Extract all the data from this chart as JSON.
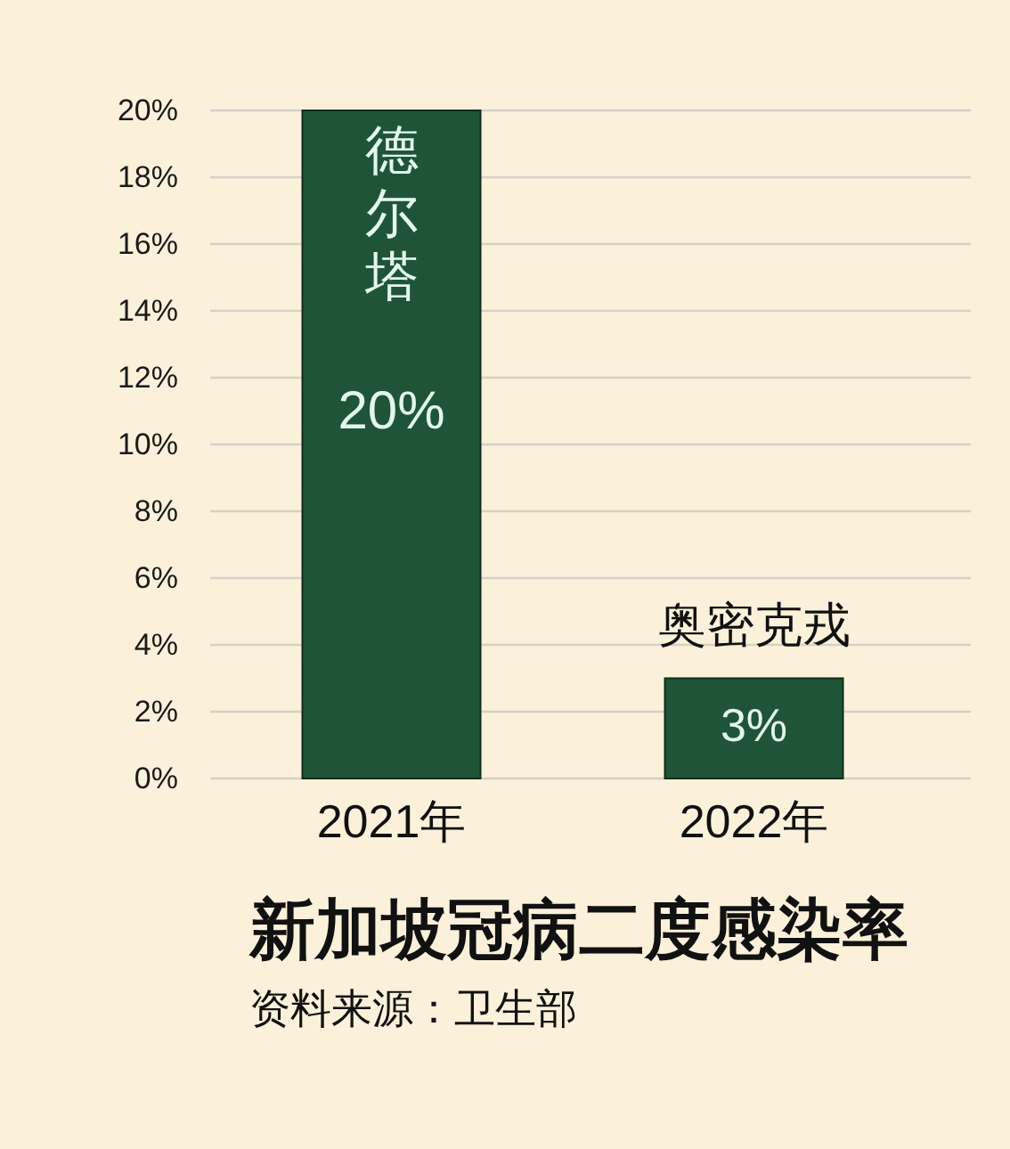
{
  "chart_data": {
    "type": "bar",
    "title": "新加坡冠病二度感染率",
    "categories": [
      "2021年",
      "2022年"
    ],
    "values": [
      20,
      3
    ],
    "color": "#1f5536",
    "value_labels": [
      "20%",
      "3%"
    ],
    "annotations": [
      {
        "text": "德尔塔",
        "x": "2021年",
        "y": 20
      },
      {
        "text": "奥密克戎",
        "x": "2022年",
        "y": 3
      },
      "资料来源：卫生部"
    ],
    "ylim": [
      0,
      20
    ],
    "yticks": [
      {
        "value": 0,
        "label": "0%"
      },
      {
        "value": 2,
        "label": "2%"
      },
      {
        "value": 4,
        "label": "4%"
      },
      {
        "value": 6,
        "label": "6%"
      },
      {
        "value": 8,
        "label": "8%"
      },
      {
        "value": 10,
        "label": "10%"
      },
      {
        "value": 12,
        "label": "12%"
      },
      {
        "value": 14,
        "label": "14%"
      },
      {
        "value": 16,
        "label": "16%"
      },
      {
        "value": 18,
        "label": "18%"
      },
      {
        "value": 20,
        "label": "20%"
      }
    ],
    "grid": "y"
  }
}
